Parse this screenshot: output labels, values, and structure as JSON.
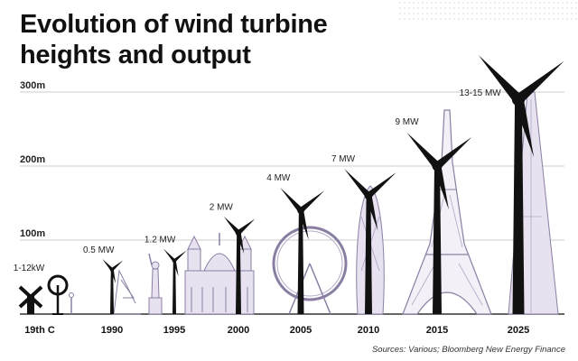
{
  "title_line1": "Evolution of wind turbine",
  "title_line2": "heights and output",
  "source": "Sources: Various; Bloomberg New Energy Finance",
  "colors": {
    "turbine": "#111111",
    "landmark_fill": "#e8e2f0",
    "landmark_stroke": "#8a7fa3",
    "gridline": "#cccccc",
    "baseline": "#333333"
  },
  "chart_data": {
    "type": "bar",
    "categories": [
      "19th C",
      "1990",
      "1995",
      "2000",
      "2005",
      "2010",
      "2015",
      "2025"
    ],
    "values": [
      18,
      60,
      72,
      110,
      140,
      160,
      200,
      290
    ],
    "output_labels": [
      "1-12kW",
      "0.5 MW",
      "1.2 MW",
      "2 MW",
      "4 MW",
      "7 MW",
      "9 MW",
      "13-15 MW"
    ],
    "ylim": [
      0,
      300
    ],
    "yticks": [
      {
        "value": 100,
        "label": "100m"
      },
      {
        "value": 200,
        "label": "200m"
      },
      {
        "value": 300,
        "label": "300m"
      }
    ],
    "grid": true,
    "landmarks": [
      "windmill",
      "statue",
      "cathedral",
      "ferris-wheel",
      "gherkin",
      "eiffel-tower",
      "skyscraper"
    ]
  }
}
